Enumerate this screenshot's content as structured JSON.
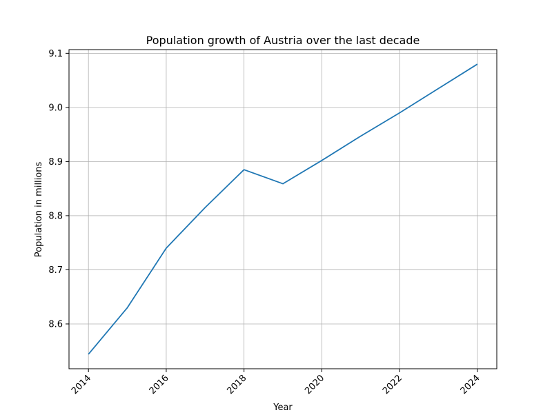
{
  "chart_data": {
    "type": "line",
    "title": "Population growth of Austria over the last decade",
    "xlabel": "Year",
    "ylabel": "Population in millions",
    "x": [
      2014,
      2015,
      2016,
      2017,
      2018,
      2019,
      2020,
      2021,
      2022,
      2023,
      2024
    ],
    "series": [
      {
        "values": [
          8.544,
          8.63,
          8.74,
          8.815,
          8.885,
          8.859,
          8.902,
          8.947,
          8.99,
          9.035,
          9.08
        ]
      }
    ],
    "xlim": [
      2013.5,
      2024.5
    ],
    "ylim": [
      8.5172,
      9.1068
    ],
    "x_ticks": [
      "2014",
      "2016",
      "2018",
      "2020",
      "2022",
      "2024"
    ],
    "y_ticks": [
      "8.6",
      "8.7",
      "8.8",
      "8.9",
      "9.0",
      "9.1"
    ],
    "grid": true,
    "colors": {
      "line": "#1f77b4",
      "grid": "#b0b0b0",
      "axes": "#000000"
    }
  }
}
